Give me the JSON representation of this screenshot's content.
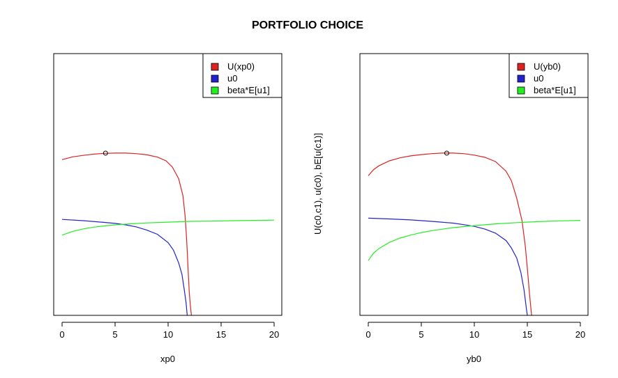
{
  "title": "PORTFOLIO CHOICE",
  "ylabel": "U(c0,c1), u(c0), bE[u(c1)]",
  "chart_data": [
    {
      "type": "line",
      "xlabel": "xp0",
      "xlim": [
        0,
        20
      ],
      "ylim": [
        0,
        1
      ],
      "xticks": [
        "0",
        "5",
        "10",
        "15",
        "20"
      ],
      "legend_position": "top-right",
      "grid": false,
      "series": [
        {
          "name": "U(xp0)",
          "color": "#dd2222",
          "points": [
            [
              0,
              0.625
            ],
            [
              1,
              0.636
            ],
            [
              2,
              0.642
            ],
            [
              3,
              0.647
            ],
            [
              4,
              0.65
            ],
            [
              5,
              0.651
            ],
            [
              6,
              0.651
            ],
            [
              7,
              0.649
            ],
            [
              8,
              0.644
            ],
            [
              9,
              0.635
            ],
            [
              9.8,
              0.62
            ],
            [
              10.4,
              0.595
            ],
            [
              11,
              0.548
            ],
            [
              11.4,
              0.48
            ],
            [
              11.6,
              0.4
            ],
            [
              11.7,
              0.34
            ],
            [
              11.8,
              0.26
            ],
            [
              11.9,
              0.17
            ],
            [
              12,
              0.09
            ],
            [
              12.1,
              0.04
            ],
            [
              12.2,
              0.0
            ]
          ]
        },
        {
          "name": "u0",
          "color": "#2222cc",
          "points": [
            [
              0,
              0.385
            ],
            [
              2,
              0.38
            ],
            [
              4,
              0.373
            ],
            [
              5,
              0.369
            ],
            [
              6,
              0.363
            ],
            [
              7,
              0.355
            ],
            [
              8,
              0.342
            ],
            [
              9,
              0.325
            ],
            [
              10,
              0.292
            ],
            [
              10.5,
              0.262
            ],
            [
              11,
              0.21
            ],
            [
              11.3,
              0.165
            ],
            [
              11.5,
              0.11
            ],
            [
              11.7,
              0.05
            ],
            [
              11.8,
              0.0
            ]
          ]
        },
        {
          "name": "beta*E[u1]",
          "color": "#22ee22",
          "points": [
            [
              0,
              0.322
            ],
            [
              1,
              0.337
            ],
            [
              2,
              0.347
            ],
            [
              3,
              0.354
            ],
            [
              4,
              0.359
            ],
            [
              5,
              0.363
            ],
            [
              6,
              0.366
            ],
            [
              8,
              0.371
            ],
            [
              10,
              0.374
            ],
            [
              12,
              0.377
            ],
            [
              14,
              0.378
            ],
            [
              16,
              0.38
            ],
            [
              18,
              0.381
            ],
            [
              20,
              0.382
            ]
          ]
        }
      ],
      "markers": [
        {
          "x": 4.1,
          "y": 0.651
        }
      ]
    },
    {
      "type": "line",
      "xlabel": "yb0",
      "xlim": [
        0,
        20
      ],
      "ylim": [
        0,
        1
      ],
      "xticks": [
        "0",
        "5",
        "10",
        "15",
        "20"
      ],
      "legend_position": "top-right",
      "grid": false,
      "series": [
        {
          "name": "U(yb0)",
          "color": "#dd2222",
          "points": [
            [
              0,
              0.56
            ],
            [
              0.5,
              0.585
            ],
            [
              1,
              0.6
            ],
            [
              2,
              0.62
            ],
            [
              3,
              0.632
            ],
            [
              4,
              0.64
            ],
            [
              5,
              0.645
            ],
            [
              6,
              0.649
            ],
            [
              7,
              0.651
            ],
            [
              8,
              0.651
            ],
            [
              9,
              0.649
            ],
            [
              10,
              0.643
            ],
            [
              11,
              0.634
            ],
            [
              12,
              0.617
            ],
            [
              13,
              0.578
            ],
            [
              13.5,
              0.54
            ],
            [
              14,
              0.47
            ],
            [
              14.5,
              0.38
            ],
            [
              14.8,
              0.28
            ],
            [
              15,
              0.19
            ],
            [
              15.2,
              0.09
            ],
            [
              15.4,
              0.0
            ]
          ]
        },
        {
          "name": "u0",
          "color": "#2222cc",
          "points": [
            [
              0,
              0.39
            ],
            [
              2,
              0.387
            ],
            [
              4,
              0.383
            ],
            [
              6,
              0.377
            ],
            [
              8,
              0.37
            ],
            [
              9,
              0.364
            ],
            [
              10,
              0.357
            ],
            [
              11,
              0.346
            ],
            [
              12,
              0.33
            ],
            [
              13,
              0.3
            ],
            [
              13.5,
              0.27
            ],
            [
              14,
              0.23
            ],
            [
              14.4,
              0.17
            ],
            [
              14.7,
              0.1
            ],
            [
              14.9,
              0.03
            ],
            [
              15,
              0.0
            ]
          ]
        },
        {
          "name": "beta*E[u1]",
          "color": "#22ee22",
          "points": [
            [
              0,
              0.22
            ],
            [
              0.5,
              0.25
            ],
            [
              1,
              0.268
            ],
            [
              2,
              0.293
            ],
            [
              3,
              0.31
            ],
            [
              4,
              0.322
            ],
            [
              5,
              0.332
            ],
            [
              6,
              0.34
            ],
            [
              8,
              0.352
            ],
            [
              10,
              0.36
            ],
            [
              12,
              0.367
            ],
            [
              14,
              0.372
            ],
            [
              16,
              0.376
            ],
            [
              18,
              0.379
            ],
            [
              20,
              0.381
            ]
          ]
        }
      ],
      "markers": [
        {
          "x": 7.4,
          "y": 0.651
        }
      ]
    }
  ]
}
